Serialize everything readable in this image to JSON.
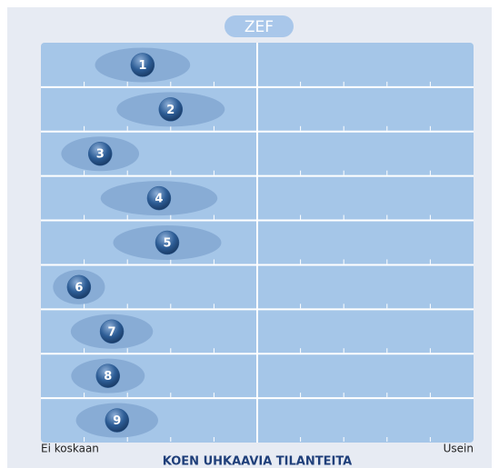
{
  "chart_data": {
    "type": "zef",
    "logo": "ZEF",
    "title": "KOEN UHKAAVIA TILANTEITA",
    "left_label": "Ei koskaan",
    "right_label": "Usein",
    "categories": [
      "1",
      "2",
      "3",
      "4",
      "5",
      "6",
      "7",
      "8",
      "9"
    ],
    "values": [
      23.5,
      30,
      13.7,
      27.3,
      29.2,
      8.8,
      16.4,
      15.5,
      17.6
    ],
    "spread": [
      22,
      25,
      18,
      27,
      25,
      12,
      19,
      17,
      19
    ],
    "xlim": [
      0,
      100
    ],
    "xticks": [
      10,
      20,
      30,
      40,
      60,
      70,
      80,
      90
    ],
    "midline": 50,
    "color": "#2d5d96"
  }
}
